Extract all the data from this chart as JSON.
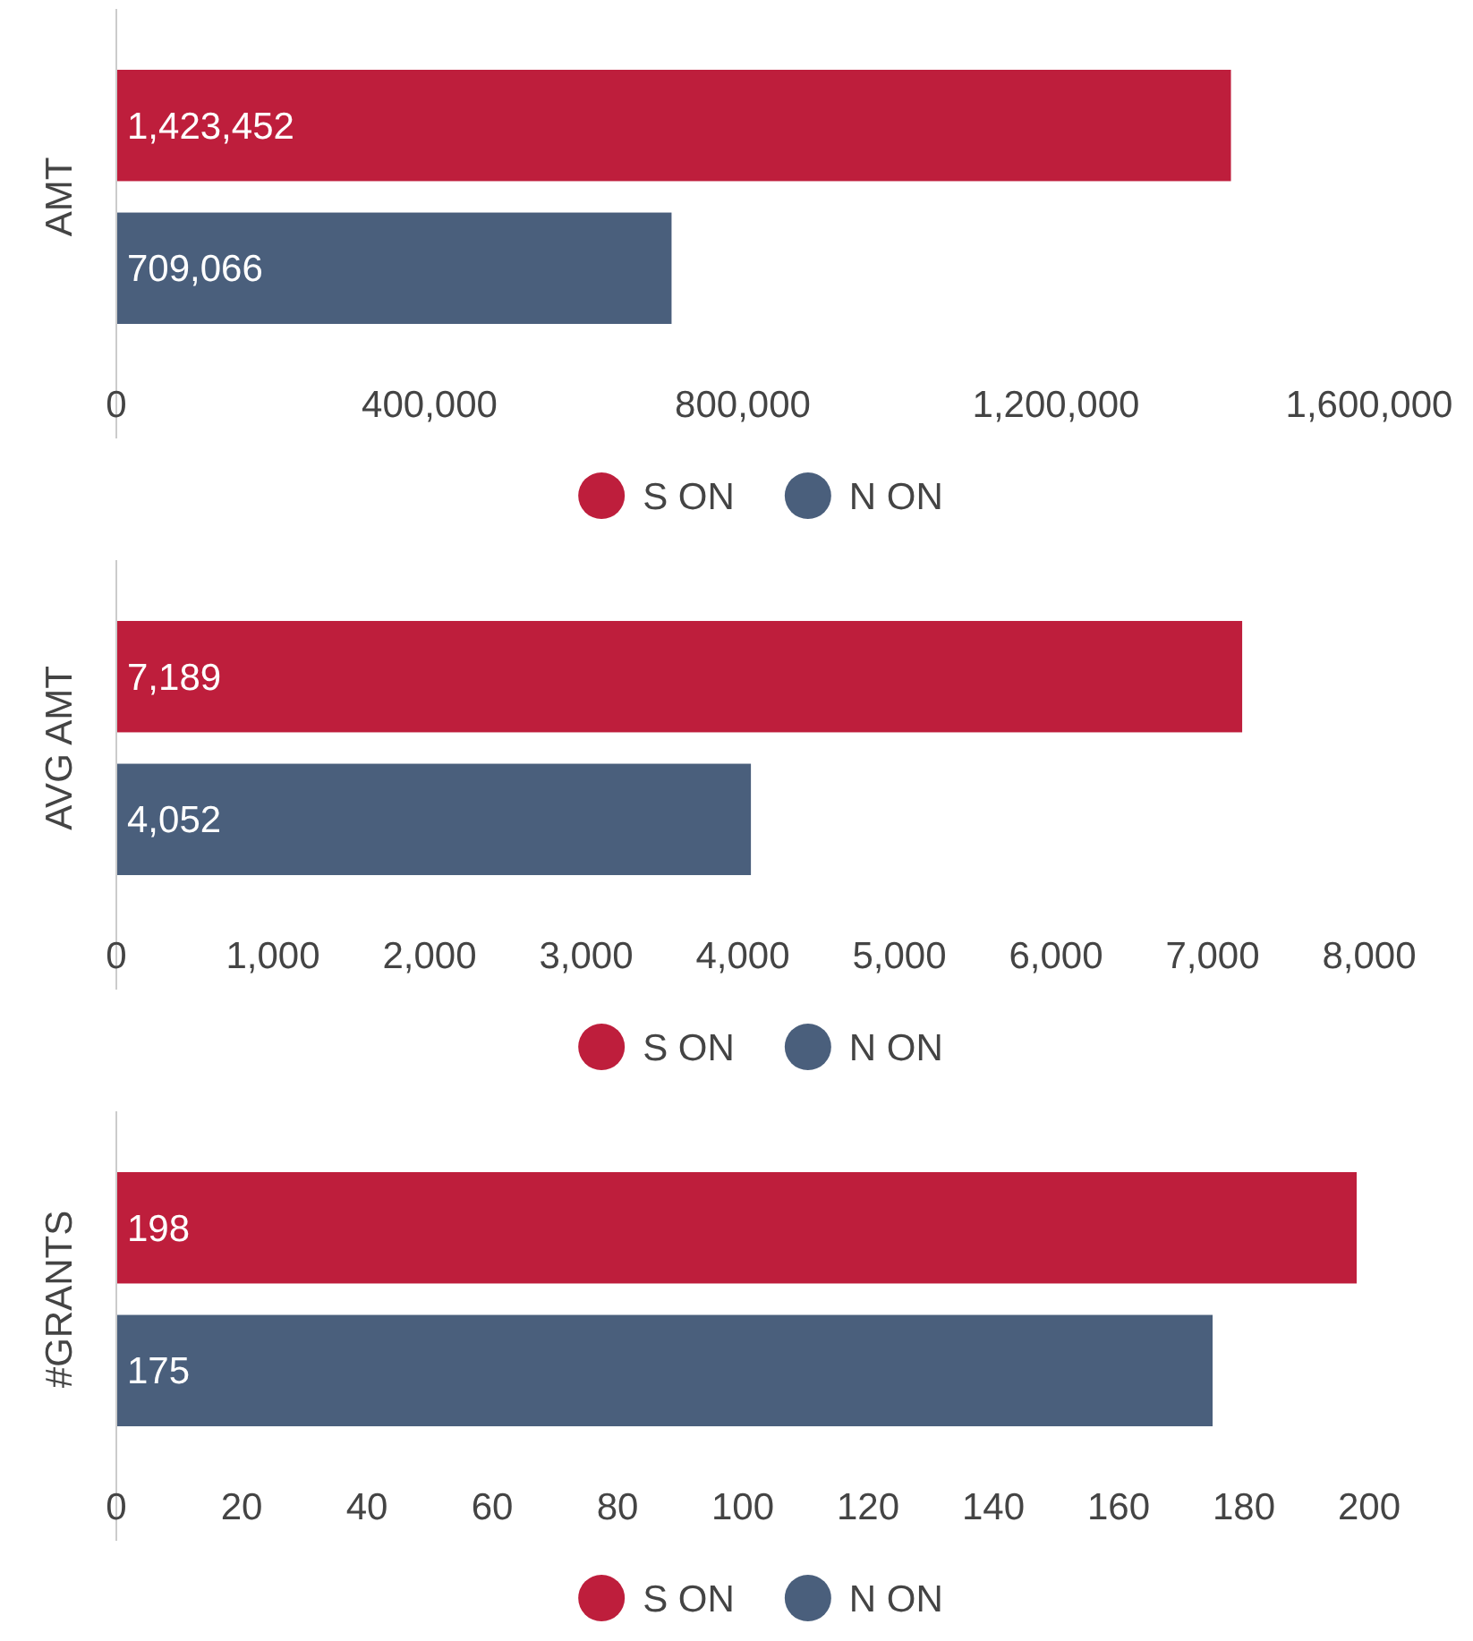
{
  "chart_data": [
    {
      "type": "bar",
      "orientation": "horizontal",
      "ylabel": "AMT",
      "categories": [
        null
      ],
      "series": [
        {
          "name": "S ON",
          "color": "#be1e3c",
          "values": [
            1423452
          ],
          "value_labels": [
            "1,423,452"
          ]
        },
        {
          "name": "N ON",
          "color": "#4a5f7c",
          "values": [
            709066
          ],
          "value_labels": [
            "709,066"
          ]
        }
      ],
      "xlim": [
        0,
        1600000
      ],
      "xticks": [
        0,
        {
          "value": 400000,
          "label": "400,000"
        },
        {
          "value": 800000,
          "label": "800,000"
        },
        {
          "value": 1200000,
          "label": "1,200,000"
        },
        {
          "value": 1600000,
          "label": "1,600,000"
        }
      ],
      "legend": "bottom"
    },
    {
      "type": "bar",
      "orientation": "horizontal",
      "ylabel": "AVG AMT",
      "categories": [
        null
      ],
      "series": [
        {
          "name": "S ON",
          "color": "#be1e3c",
          "values": [
            7189
          ],
          "value_labels": [
            "7,189"
          ]
        },
        {
          "name": "N ON",
          "color": "#4a5f7c",
          "values": [
            4052
          ],
          "value_labels": [
            "4,052"
          ]
        }
      ],
      "xlim": [
        0,
        8000
      ],
      "xticks": [
        0,
        {
          "value": 1000,
          "label": "1,000"
        },
        {
          "value": 2000,
          "label": "2,000"
        },
        {
          "value": 3000,
          "label": "3,000"
        },
        {
          "value": 4000,
          "label": "4,000"
        },
        {
          "value": 5000,
          "label": "5,000"
        },
        {
          "value": 6000,
          "label": "6,000"
        },
        {
          "value": 7000,
          "label": "7,000"
        },
        {
          "value": 8000,
          "label": "8,000"
        }
      ],
      "legend": "bottom"
    },
    {
      "type": "bar",
      "orientation": "horizontal",
      "ylabel": "#GRANTS",
      "categories": [
        null
      ],
      "series": [
        {
          "name": "S ON",
          "color": "#be1e3c",
          "values": [
            198
          ]
        },
        {
          "name": "N ON",
          "color": "#4a5f7c",
          "values": [
            175
          ]
        }
      ],
      "xlim": [
        0,
        200
      ],
      "xticks": [
        0,
        20,
        40,
        60,
        80,
        100,
        120,
        140,
        160,
        180,
        200
      ],
      "data_labels": true,
      "legend": "bottom"
    }
  ]
}
